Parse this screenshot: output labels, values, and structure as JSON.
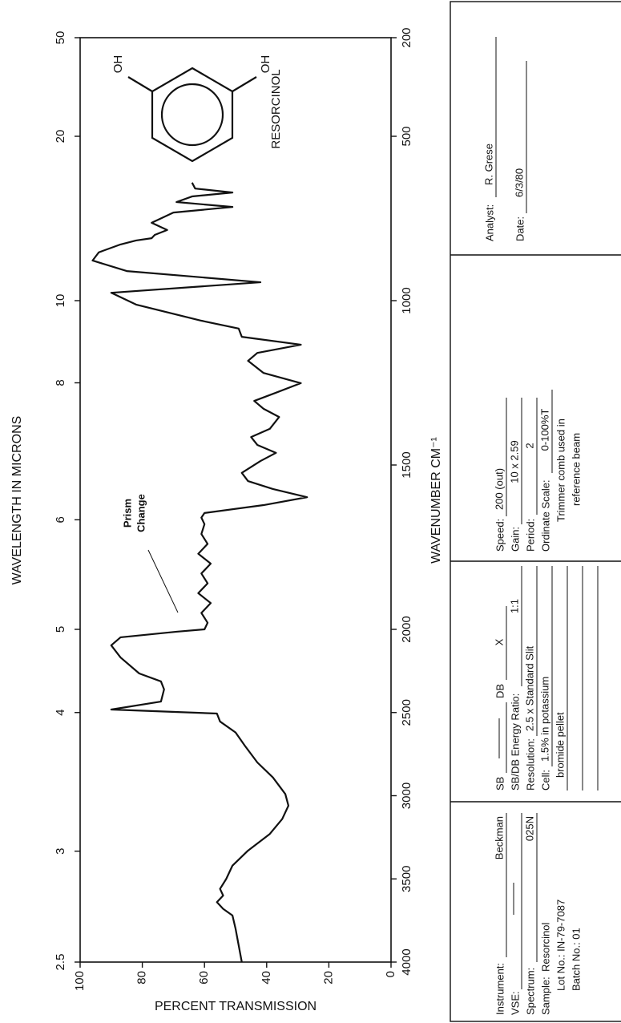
{
  "chart_data": {
    "type": "line",
    "x2_label": "WAVELENGTH IN MICRONS",
    "x_label": "WAVENUMBER CM⁻¹",
    "y_label": "PERCENT TRANSMISSION",
    "color": "#111111",
    "x_scale_break": 2000,
    "xlim": [
      4000,
      200
    ],
    "xticks": [
      4000,
      3500,
      3000,
      2500,
      2000,
      1500,
      1000,
      500,
      200
    ],
    "x2ticks": [
      2.5,
      3,
      4,
      5,
      6,
      8,
      10,
      20,
      50
    ],
    "ylim": [
      0,
      100
    ],
    "yticks": [
      0,
      20,
      40,
      60,
      80,
      100
    ],
    "x": [
      4000,
      3900,
      3800,
      3720,
      3680,
      3640,
      3600,
      3560,
      3500,
      3420,
      3330,
      3230,
      3140,
      3060,
      2990,
      2890,
      2800,
      2700,
      2620,
      2554,
      2506,
      2482,
      2434,
      2361,
      2313,
      2265,
      2169,
      2096,
      2048,
      2014,
      2000,
      1980,
      1950,
      1920,
      1890,
      1860,
      1830,
      1800,
      1770,
      1740,
      1710,
      1680,
      1660,
      1646,
      1622,
      1598,
      1573,
      1549,
      1524,
      1488,
      1463,
      1439,
      1415,
      1390,
      1354,
      1329,
      1305,
      1280,
      1251,
      1220,
      1183,
      1159,
      1134,
      1110,
      1085,
      1061,
      1012,
      976,
      944,
      910,
      878,
      853,
      829,
      817,
      810,
      800,
      785,
      763,
      732,
      715,
      700,
      683,
      671,
      659,
      641
    ],
    "values": [
      48,
      49,
      50,
      51,
      54,
      56,
      54,
      55,
      53,
      51,
      46,
      39,
      35,
      33,
      34,
      38,
      43,
      47,
      50,
      55,
      56,
      90,
      74,
      73,
      74,
      81,
      87,
      90,
      87,
      69,
      60,
      59,
      61,
      58,
      62,
      59,
      61,
      58,
      62,
      59,
      61,
      60,
      61,
      60,
      41,
      27,
      38,
      46,
      48,
      42,
      37,
      43,
      45,
      39,
      36,
      41,
      44,
      37,
      29,
      41,
      46,
      43,
      29,
      48,
      49,
      61,
      82,
      90,
      42,
      85,
      96,
      94,
      87,
      82,
      77,
      76,
      72,
      77,
      70,
      51,
      69,
      64,
      51,
      63,
      64
    ],
    "annotations": {
      "compound": "RESORCINOL",
      "substituents": [
        "OH",
        "OH"
      ],
      "prism_change": [
        "Prism",
        "Change"
      ]
    }
  },
  "form": {
    "instrument": {
      "label": "Instrument:",
      "value": "Beckman"
    },
    "vse": "VSE:",
    "spectrum": {
      "label": "Spectrum:",
      "value": "025N"
    },
    "sample": {
      "label": "Sample:",
      "value": "Resorcinol"
    },
    "lot": "Lot No.: IN-79-7087",
    "batch": "Batch No.: 01",
    "sb": "SB",
    "db": {
      "label": "DB",
      "value": "X"
    },
    "energy_ratio": {
      "label": "SB/DB Energy Ratio:",
      "value": "1:1"
    },
    "resolution": {
      "label": "Resolution:",
      "value": "2.5 x Standard Slit"
    },
    "cell": {
      "label": "Cell:",
      "value": "1.5% in potassium"
    },
    "cell_cont": "bromide pellet",
    "speed": {
      "label": "Speed:",
      "value": "200 (out)"
    },
    "gain": {
      "label": "Gain:",
      "value": "10 x 2.59"
    },
    "period": {
      "label": "Period:",
      "value": "2"
    },
    "ordinate_scale": {
      "label": "Ordinate Scale:",
      "value": "0-100%T"
    },
    "note": [
      "Trimmer comb used in",
      "reference beam"
    ],
    "analyst": {
      "label": "Analyst:",
      "value": "R. Grese"
    },
    "date": {
      "label": "Date:",
      "value": "6/3/80"
    }
  }
}
